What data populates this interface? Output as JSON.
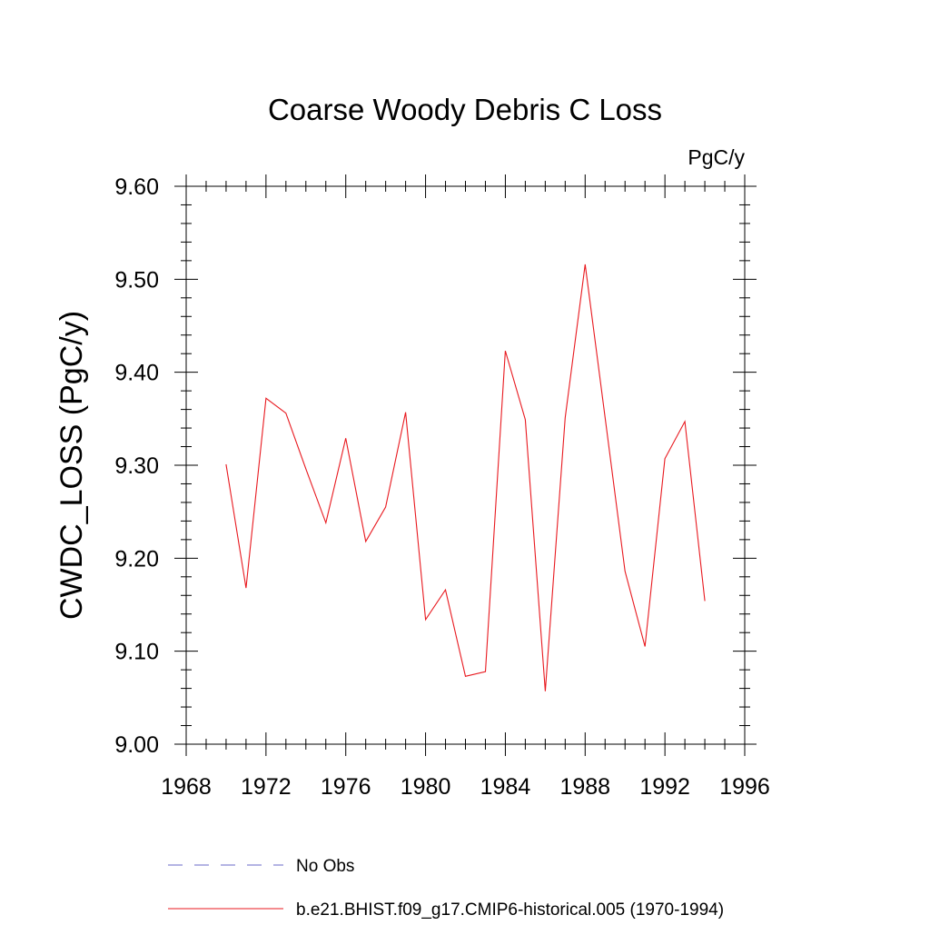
{
  "chart_data": {
    "type": "line",
    "title": "Coarse Woody Debris C Loss",
    "units_label": "PgC/y",
    "ylabel": "CWDC_LOSS  (PgC/y)",
    "xlabel": "",
    "xlim": [
      1968,
      1996
    ],
    "ylim": [
      9.0,
      9.6
    ],
    "x_ticks": [
      "1968",
      "1972",
      "1976",
      "1980",
      "1984",
      "1988",
      "1992",
      "1996"
    ],
    "y_ticks": [
      "9.00",
      "9.10",
      "9.20",
      "9.30",
      "9.40",
      "9.50",
      "9.60"
    ],
    "grid": false,
    "legend_position": "bottom",
    "legend": [
      {
        "name": "No Obs",
        "color": "#6a6ac8",
        "style": "dashed"
      },
      {
        "name": "b.e21.BHIST.f09_g17.CMIP6-historical.005 (1970-1994)",
        "color": "#e8191f",
        "style": "solid"
      }
    ],
    "series": [
      {
        "name": "b.e21.BHIST.f09_g17.CMIP6-historical.005 (1970-1994)",
        "color": "#e8191f",
        "x": [
          1970,
          1971,
          1972,
          1973,
          1974,
          1975,
          1976,
          1977,
          1978,
          1979,
          1980,
          1981,
          1982,
          1983,
          1984,
          1985,
          1986,
          1987,
          1988,
          1989,
          1990,
          1991,
          1992,
          1993,
          1994
        ],
        "y": [
          9.301,
          9.168,
          9.372,
          9.356,
          9.296,
          9.238,
          9.329,
          9.218,
          9.255,
          9.357,
          9.134,
          9.166,
          9.073,
          9.078,
          9.423,
          9.349,
          9.057,
          9.351,
          9.516,
          9.351,
          9.186,
          9.105,
          9.307,
          9.347,
          9.154
        ]
      }
    ]
  }
}
